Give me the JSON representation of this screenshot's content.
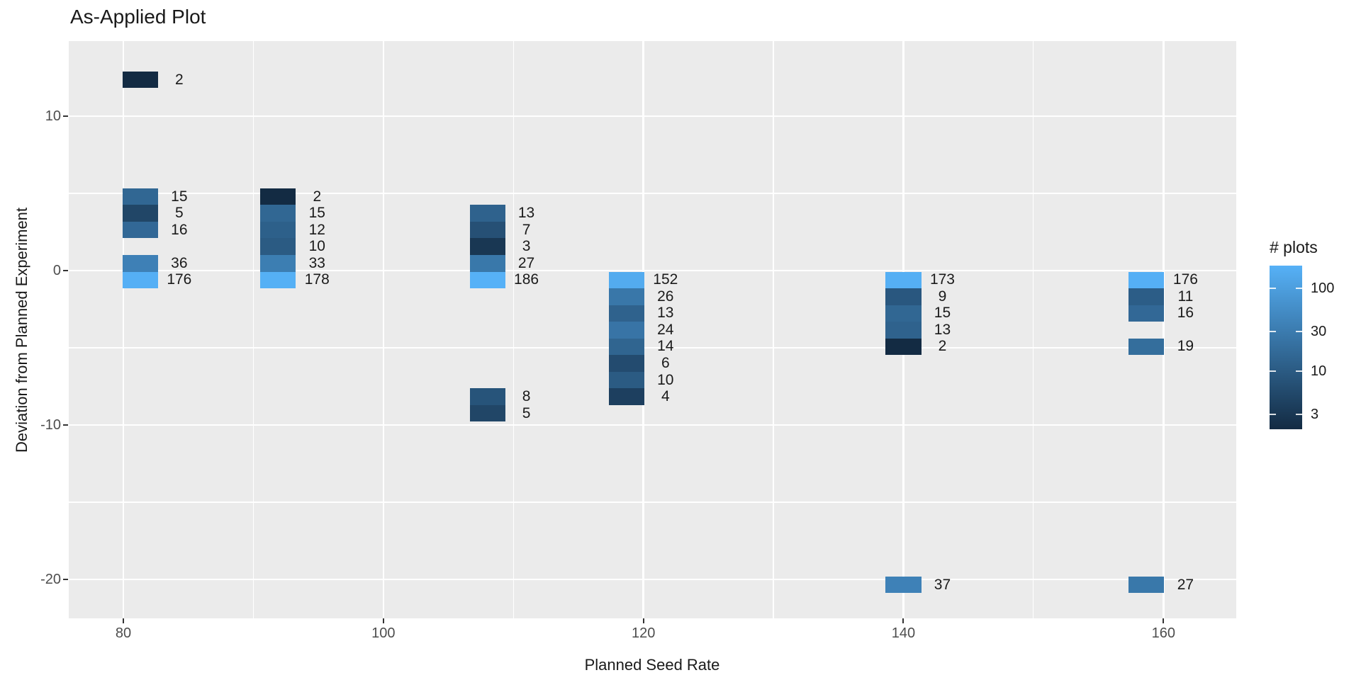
{
  "title": "As-Applied Plot",
  "axes": {
    "x": {
      "label": "Planned Seed Rate"
    },
    "y": {
      "label": "Deviation from Planned Experiment"
    }
  },
  "legend": {
    "title": "# plots",
    "ticks": [
      100,
      30,
      10,
      3
    ],
    "low_color": "#132B43",
    "high_color": "#56B1F7",
    "domain": [
      2,
      186
    ]
  },
  "colors": {
    "panel_bg": "#EBEBEB",
    "grid": "#FFFFFF",
    "tick_text": "#4D4D4D",
    "label_text": "#1A1A1A"
  },
  "chart_data": {
    "type": "heatmap",
    "title": "As-Applied Plot",
    "xlabel": "Planned Seed Rate",
    "ylabel": "Deviation from Planned Experiment",
    "fill_label": "# plots",
    "fill_scale": {
      "type": "log-gradient",
      "low": "#132B43",
      "high": "#56B1F7",
      "domain": [
        2,
        186
      ],
      "legend_ticks": [
        100,
        30,
        10,
        3
      ]
    },
    "grid": true,
    "legend_position": "right",
    "xlim": [
      75.8,
      165.6
    ],
    "ylim": [
      -22.52,
      14.86
    ],
    "x_ticks": [
      80,
      100,
      120,
      140,
      160
    ],
    "y_ticks": [
      10,
      0,
      -10,
      -20
    ],
    "x_minor_ticks": [
      90,
      110,
      130,
      150
    ],
    "y_minor_ticks": [
      5,
      -5,
      -15
    ],
    "tile_width_units": 2.73,
    "tile_height_units": 1.08,
    "bins": [
      {
        "x": 81.3,
        "y": 12.35,
        "n": 2
      },
      {
        "x": 81.3,
        "y": 4.79,
        "n": 15
      },
      {
        "x": 81.3,
        "y": 3.71,
        "n": 5
      },
      {
        "x": 81.3,
        "y": 2.63,
        "n": 16
      },
      {
        "x": 81.3,
        "y": 0.47,
        "n": 36
      },
      {
        "x": 81.3,
        "y": -0.61,
        "n": 176
      },
      {
        "x": 91.9,
        "y": 4.79,
        "n": 2
      },
      {
        "x": 91.9,
        "y": 3.71,
        "n": 15
      },
      {
        "x": 91.9,
        "y": 2.63,
        "n": 12
      },
      {
        "x": 91.9,
        "y": 1.55,
        "n": 10
      },
      {
        "x": 91.9,
        "y": 0.47,
        "n": 33
      },
      {
        "x": 91.9,
        "y": -0.61,
        "n": 178
      },
      {
        "x": 108.0,
        "y": 3.71,
        "n": 13
      },
      {
        "x": 108.0,
        "y": 2.63,
        "n": 7
      },
      {
        "x": 108.0,
        "y": 1.55,
        "n": 3
      },
      {
        "x": 108.0,
        "y": 0.47,
        "n": 27
      },
      {
        "x": 108.0,
        "y": -0.61,
        "n": 186
      },
      {
        "x": 108.0,
        "y": -8.17,
        "n": 8
      },
      {
        "x": 108.0,
        "y": -9.25,
        "n": 5
      },
      {
        "x": 118.7,
        "y": -0.61,
        "n": 152
      },
      {
        "x": 118.7,
        "y": -1.69,
        "n": 26
      },
      {
        "x": 118.7,
        "y": -2.77,
        "n": 13
      },
      {
        "x": 118.7,
        "y": -3.85,
        "n": 24
      },
      {
        "x": 118.7,
        "y": -4.93,
        "n": 14
      },
      {
        "x": 118.7,
        "y": -6.01,
        "n": 6
      },
      {
        "x": 118.7,
        "y": -7.09,
        "n": 10
      },
      {
        "x": 118.7,
        "y": -8.17,
        "n": 4
      },
      {
        "x": 140.0,
        "y": -0.61,
        "n": 173
      },
      {
        "x": 140.0,
        "y": -1.69,
        "n": 9
      },
      {
        "x": 140.0,
        "y": -2.77,
        "n": 15
      },
      {
        "x": 140.0,
        "y": -3.85,
        "n": 13
      },
      {
        "x": 140.0,
        "y": -4.93,
        "n": 2
      },
      {
        "x": 140.0,
        "y": -20.35,
        "n": 37
      },
      {
        "x": 158.7,
        "y": -0.61,
        "n": 176
      },
      {
        "x": 158.7,
        "y": -1.69,
        "n": 11
      },
      {
        "x": 158.7,
        "y": -2.77,
        "n": 16
      },
      {
        "x": 158.7,
        "y": -4.93,
        "n": 19
      },
      {
        "x": 158.7,
        "y": -20.35,
        "n": 27
      }
    ]
  }
}
